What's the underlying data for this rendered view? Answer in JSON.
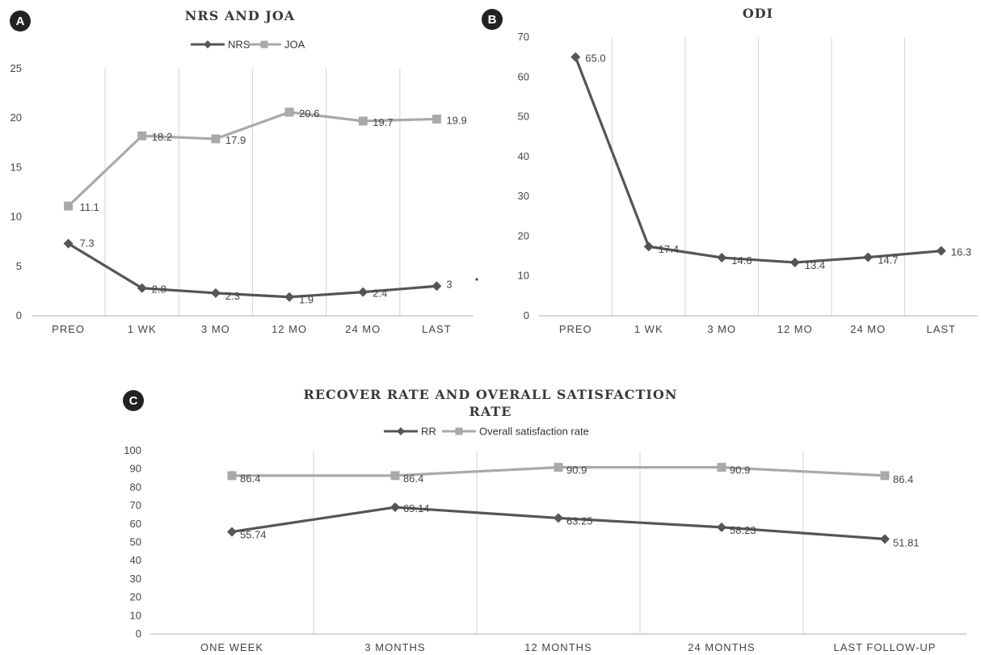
{
  "colors": {
    "dark_series": "#555555",
    "light_series": "#a9a9a9",
    "grid": "#d9d9d9",
    "badge": "#222222"
  },
  "chart_data": [
    {
      "id": "A",
      "type": "line",
      "panel_label": "A",
      "title": "NRS AND JOA",
      "categories": [
        "PREO",
        "1 WK",
        "3 MO",
        "12 MO",
        "24 MO",
        "LAST"
      ],
      "ylim": [
        0,
        25
      ],
      "yticks": [
        "0",
        "5",
        "10",
        "15",
        "20",
        "25"
      ],
      "grid": "vertical",
      "legend": "top",
      "series": [
        {
          "name": "NRS",
          "marker": "diamond",
          "color": "#555555",
          "values": [
            7.3,
            2.8,
            2.3,
            1.9,
            2.4,
            3
          ],
          "labels": [
            "7.3",
            "2.8",
            "2.3",
            "1.9",
            "2.4",
            "3"
          ]
        },
        {
          "name": "JOA",
          "marker": "square",
          "color": "#a9a9a9",
          "values": [
            11.1,
            18.2,
            17.9,
            20.6,
            19.7,
            19.9
          ],
          "labels": [
            "11.1",
            "18.2",
            "17.9",
            "20.6",
            "19.7",
            "19.9"
          ]
        }
      ]
    },
    {
      "id": "B",
      "type": "line",
      "panel_label": "B",
      "title": "ODI",
      "categories": [
        "PREO",
        "1 WK",
        "3 MO",
        "12 MO",
        "24 MO",
        "LAST"
      ],
      "ylim": [
        0,
        70
      ],
      "yticks": [
        "0",
        "10",
        "20",
        "30",
        "40",
        "50",
        "60",
        "70"
      ],
      "grid": "vertical",
      "legend": "none",
      "series": [
        {
          "name": "",
          "marker": "diamond",
          "color": "#555555",
          "values": [
            65.0,
            17.4,
            14.6,
            13.4,
            14.7,
            16.3
          ],
          "labels": [
            "65.0",
            "17.4",
            "14.6",
            "13.4",
            "14.7",
            "16.3"
          ]
        }
      ]
    },
    {
      "id": "C",
      "type": "line",
      "panel_label": "C",
      "title_lines": [
        "RECOVER RATE AND  OVERALL SATISFACTION",
        "RATE"
      ],
      "categories": [
        "ONE WEEK",
        "3 MONTHS",
        "12 MONTHS",
        "24 MONTHS",
        "LAST FOLLOW-UP"
      ],
      "ylim": [
        0,
        100
      ],
      "yticks": [
        "0",
        "10",
        "20",
        "30",
        "40",
        "50",
        "60",
        "70",
        "80",
        "90",
        "100"
      ],
      "grid": "vertical",
      "legend": "top",
      "series": [
        {
          "name": "RR",
          "marker": "diamond",
          "color": "#555555",
          "values": [
            55.74,
            69.14,
            63.25,
            58.23,
            51.81
          ],
          "labels": [
            "55.74",
            "69.14",
            "63.25",
            "58.23",
            "51.81"
          ]
        },
        {
          "name": "Overall satisfaction rate",
          "marker": "square",
          "color": "#a9a9a9",
          "values": [
            86.4,
            86.4,
            90.9,
            90.9,
            86.4
          ],
          "labels": [
            "86.4",
            "86.4",
            "90.9",
            "90.9",
            "86.4"
          ]
        }
      ]
    }
  ]
}
